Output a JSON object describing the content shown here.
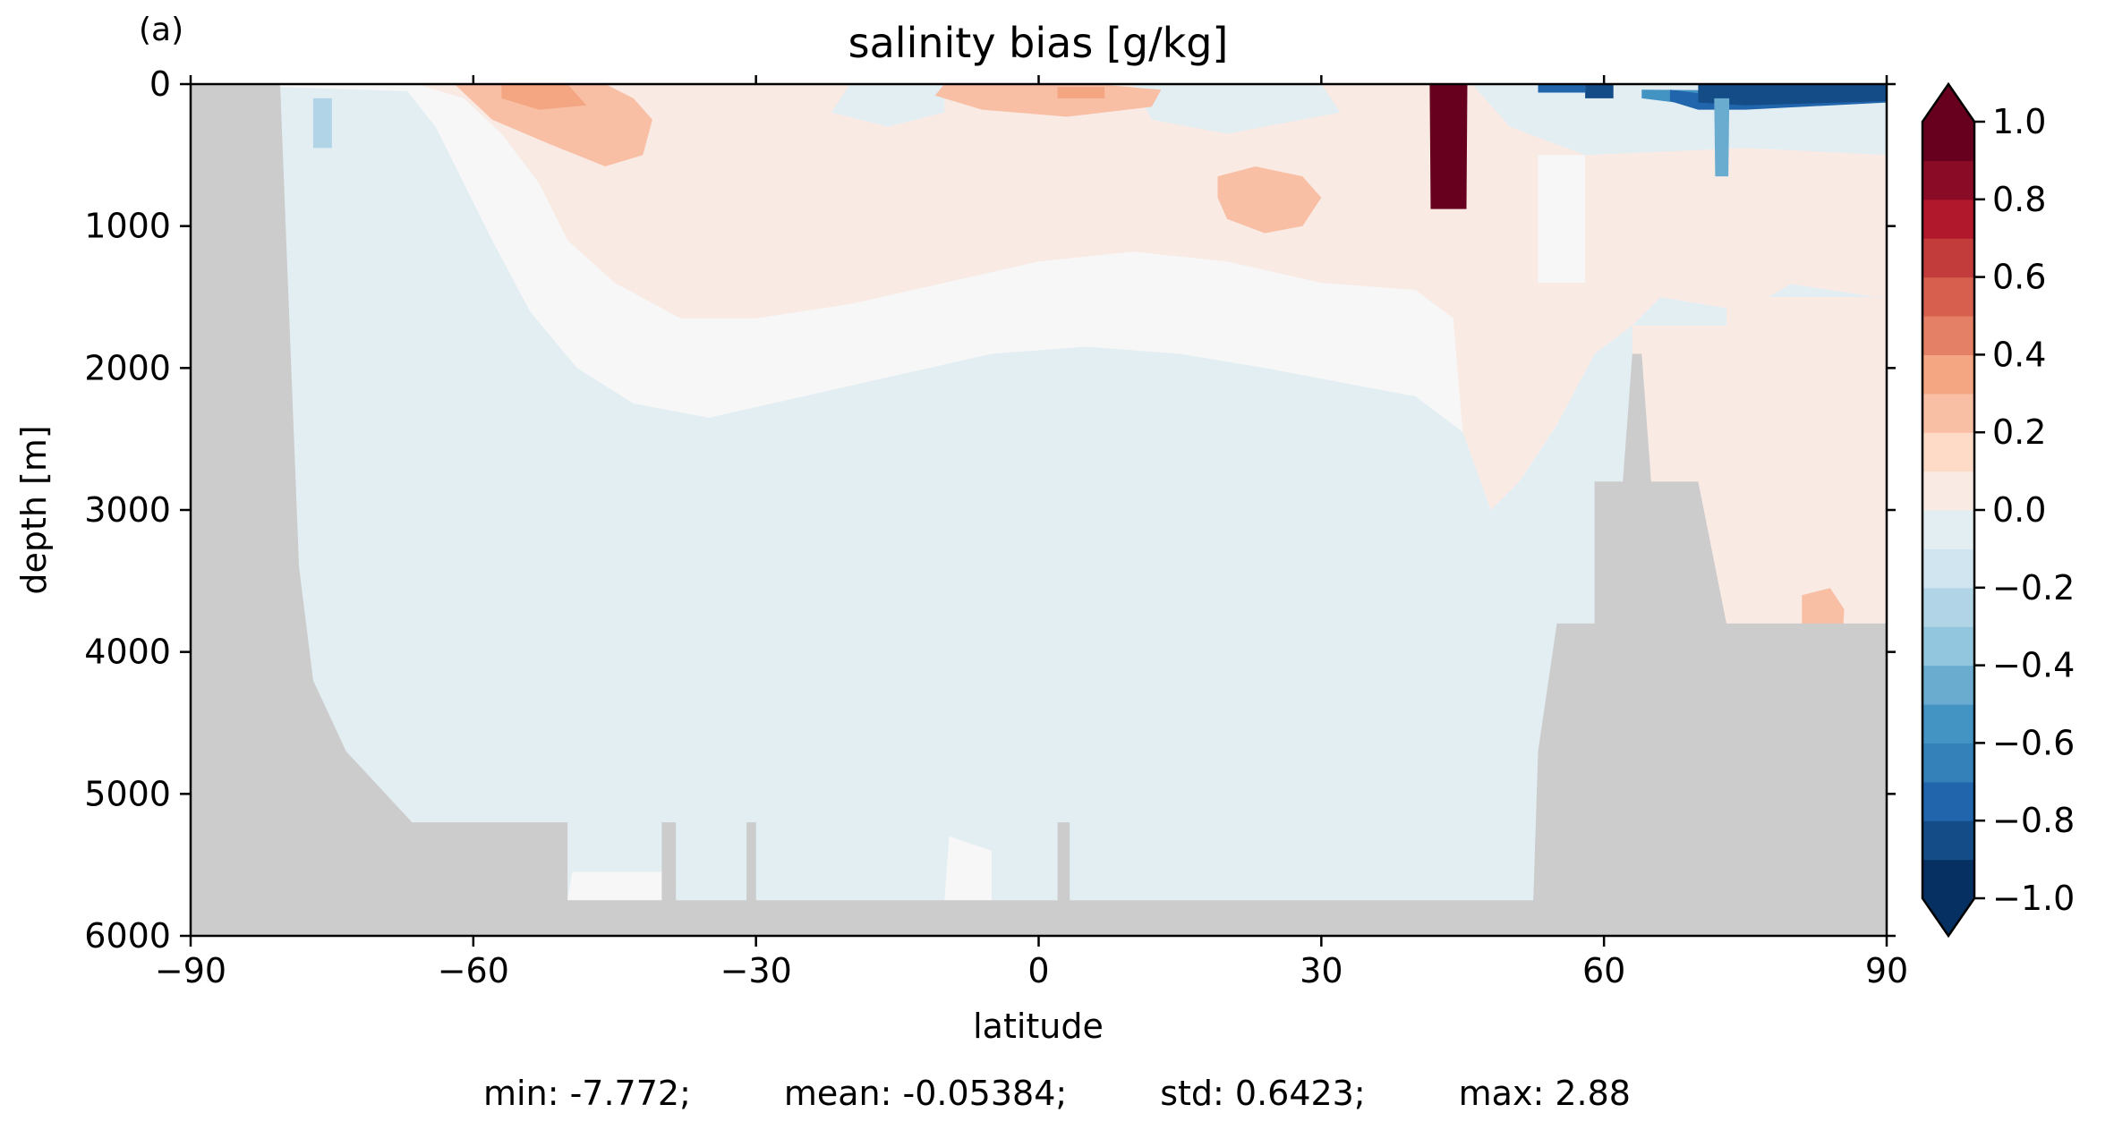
{
  "chart_data": {
    "type": "heatmap",
    "panel_label": "(a)",
    "title": "salinity bias [g/kg]",
    "xlabel": "latitude",
    "ylabel": "depth [m]",
    "xlim": [
      -90,
      90
    ],
    "ylim": [
      6000,
      0
    ],
    "x_ticks": [
      -90,
      -60,
      -30,
      0,
      30,
      60,
      90
    ],
    "x_tick_labels": [
      "−90",
      "−60",
      "−30",
      "0",
      "30",
      "60",
      "90"
    ],
    "y_ticks": [
      0,
      1000,
      2000,
      3000,
      4000,
      5000,
      6000
    ],
    "y_tick_labels": [
      "0",
      "1000",
      "2000",
      "3000",
      "4000",
      "5000",
      "6000"
    ],
    "colorbar": {
      "levels": [
        -1.0,
        -0.9,
        -0.8,
        -0.7,
        -0.6,
        -0.5,
        -0.4,
        -0.3,
        -0.2,
        -0.1,
        0.0,
        0.1,
        0.2,
        0.3,
        0.4,
        0.5,
        0.6,
        0.7,
        0.8,
        0.9,
        1.0
      ],
      "ticks": [
        -1.0,
        -0.8,
        -0.6,
        -0.4,
        -0.2,
        0.0,
        0.2,
        0.4,
        0.6,
        0.8,
        1.0
      ],
      "tick_labels": [
        "−1.0",
        "−0.8",
        "−0.6",
        "−0.4",
        "−0.2",
        "0.0",
        "0.2",
        "0.4",
        "0.6",
        "0.8",
        "1.0"
      ],
      "colors": [
        "#053061",
        "#134c87",
        "#2166ac",
        "#3480b9",
        "#4393c3",
        "#6aacd0",
        "#92c5de",
        "#b1d5e7",
        "#d1e5f0",
        "#e3eef3",
        "#f7f7f7",
        "#f9eae4",
        "#fddbc7",
        "#f8bfa4",
        "#f4a582",
        "#e48066",
        "#d6604d",
        "#c33c3c",
        "#b2182b",
        "#8a0b25",
        "#67001f"
      ],
      "extend": "both"
    },
    "land_color": "#cccccc",
    "land_profile": [
      [
        -90,
        0
      ],
      [
        -80.5,
        0
      ],
      [
        -78.5,
        3400
      ],
      [
        -77,
        4200
      ],
      [
        -73.5,
        4700
      ],
      [
        -66.5,
        5200
      ],
      [
        -50,
        5200
      ],
      [
        -50,
        5750
      ],
      [
        -40,
        5750
      ],
      [
        -40,
        5200
      ],
      [
        -38.5,
        5200
      ],
      [
        -38.5,
        5750
      ],
      [
        -31,
        5750
      ],
      [
        -31,
        5200
      ],
      [
        -30,
        5200
      ],
      [
        -30,
        5750
      ],
      [
        2,
        5750
      ],
      [
        2,
        5200
      ],
      [
        3.3,
        5200
      ],
      [
        3.3,
        5750
      ],
      [
        52.5,
        5750
      ],
      [
        53,
        4700
      ],
      [
        55,
        3800
      ],
      [
        59,
        3800
      ],
      [
        59,
        2800
      ],
      [
        62,
        2800
      ],
      [
        63,
        1900
      ],
      [
        64,
        1900
      ],
      [
        65,
        2800
      ],
      [
        70,
        2800
      ],
      [
        73,
        3800
      ],
      [
        90,
        3800
      ],
      [
        90,
        6000
      ],
      [
        -90,
        6000
      ]
    ],
    "bias_regions": [
      {
        "level": -0.05,
        "points": [
          [
            -80,
            0
          ],
          [
            -50,
            0
          ],
          [
            -30,
            0
          ],
          [
            -10,
            0
          ],
          [
            30,
            0
          ],
          [
            60,
            0
          ],
          [
            90,
            0
          ],
          [
            90,
            6000
          ],
          [
            -90,
            6000
          ],
          [
            -90,
            0
          ]
        ]
      },
      {
        "level": -0.15,
        "points": [
          [
            -80.5,
            0
          ],
          [
            -67,
            0
          ],
          [
            -63,
            400
          ],
          [
            -65,
            1000
          ],
          [
            -67,
            2500
          ],
          [
            -68.5,
            3500
          ],
          [
            -68.5,
            4050
          ],
          [
            -76,
            4400
          ],
          [
            -79,
            4000
          ],
          [
            -79.5,
            2000
          ]
        ]
      },
      {
        "level": -0.15,
        "points": [
          [
            -54,
            5600
          ],
          [
            -52,
            5000
          ],
          [
            -51,
            4750
          ],
          [
            -49.5,
            5100
          ],
          [
            -48,
            5750
          ],
          [
            -54,
            5750
          ]
        ]
      },
      {
        "level": -0.15,
        "points": [
          [
            -38.5,
            5650
          ],
          [
            -30,
            5450
          ],
          [
            -24,
            5700
          ],
          [
            -38.5,
            5750
          ]
        ]
      },
      {
        "level": -0.15,
        "points": [
          [
            -5,
            5600
          ],
          [
            -2,
            5750
          ],
          [
            -6,
            5750
          ]
        ]
      },
      {
        "level": -0.15,
        "points": [
          [
            40,
            1650
          ],
          [
            41,
            1350
          ],
          [
            42,
            1900
          ],
          [
            41.5,
            2250
          ]
        ]
      },
      {
        "level": 0.05,
        "points": [
          [
            -90,
            0
          ],
          [
            90,
            0
          ],
          [
            90,
            1400
          ],
          [
            89,
            1500
          ],
          [
            79,
            1400
          ],
          [
            75,
            1600
          ],
          [
            66,
            1500
          ],
          [
            63,
            1700
          ],
          [
            59,
            1900
          ],
          [
            55,
            2400
          ],
          [
            51,
            2800
          ],
          [
            48,
            3000
          ],
          [
            45,
            2450
          ],
          [
            40,
            2200
          ],
          [
            32,
            2100
          ],
          [
            24,
            2000
          ],
          [
            15,
            1900
          ],
          [
            5,
            1850
          ],
          [
            -5,
            1900
          ],
          [
            -15,
            2050
          ],
          [
            -25,
            2200
          ],
          [
            -35,
            2350
          ],
          [
            -43,
            2250
          ],
          [
            -49,
            2000
          ],
          [
            -54,
            1600
          ],
          [
            -58,
            1100
          ],
          [
            -61,
            700
          ],
          [
            -64,
            300
          ],
          [
            -67,
            50
          ]
        ]
      },
      {
        "level": 0.05,
        "points": [
          [
            -50,
            5750
          ],
          [
            -49.5,
            5550
          ],
          [
            -40,
            5550
          ],
          [
            -40,
            5750
          ]
        ]
      },
      {
        "level": 0.05,
        "points": [
          [
            -10,
            5750
          ],
          [
            -9.5,
            5300
          ],
          [
            -5,
            5400
          ],
          [
            -5,
            5750
          ]
        ]
      },
      {
        "level": 0.15,
        "points": [
          [
            -66,
            0
          ],
          [
            90,
            0
          ],
          [
            90,
            1400
          ],
          [
            89,
            1500
          ],
          [
            79,
            1400
          ],
          [
            75,
            1600
          ],
          [
            66,
            1500
          ],
          [
            63,
            1700
          ],
          [
            59,
            1900
          ],
          [
            55,
            2400
          ],
          [
            51,
            2800
          ],
          [
            48,
            3000
          ],
          [
            45,
            2450
          ],
          [
            44,
            1650
          ],
          [
            40,
            1450
          ],
          [
            30,
            1400
          ],
          [
            20,
            1250
          ],
          [
            10,
            1180
          ],
          [
            0,
            1250
          ],
          [
            -10,
            1400
          ],
          [
            -20,
            1550
          ],
          [
            -30,
            1650
          ],
          [
            -38,
            1650
          ],
          [
            -45,
            1400
          ],
          [
            -50,
            1100
          ],
          [
            -53,
            700
          ],
          [
            -57,
            350
          ],
          [
            -61,
            100
          ]
        ]
      },
      {
        "level": -0.15,
        "points": [
          [
            -20,
            0
          ],
          [
            -10,
            0
          ],
          [
            -10,
            200
          ],
          [
            -16,
            300
          ],
          [
            -22,
            200
          ]
        ]
      },
      {
        "level": -0.15,
        "points": [
          [
            10,
            0
          ],
          [
            30,
            0
          ],
          [
            32,
            200
          ],
          [
            20,
            350
          ],
          [
            12,
            250
          ]
        ]
      },
      {
        "level": -0.15,
        "points": [
          [
            46,
            0
          ],
          [
            90,
            0
          ],
          [
            90,
            500
          ],
          [
            75,
            450
          ],
          [
            58,
            500
          ],
          [
            50,
            300
          ]
        ]
      },
      {
        "level": 0.05,
        "points": [
          [
            53,
            500
          ],
          [
            58,
            500
          ],
          [
            58,
            1400
          ],
          [
            53,
            1400
          ]
        ]
      },
      {
        "level": 0.15,
        "points": [
          [
            63,
            600
          ],
          [
            75,
            700
          ],
          [
            90,
            800
          ],
          [
            90,
            1500
          ],
          [
            80,
            1400
          ],
          [
            75,
            1600
          ],
          [
            66,
            1500
          ],
          [
            63,
            1700
          ]
        ]
      },
      {
        "level": 0.15,
        "points": [
          [
            63,
            1700
          ],
          [
            73,
            1700
          ],
          [
            73,
            3800
          ],
          [
            70,
            3800
          ],
          [
            65,
            2800
          ],
          [
            64,
            1900
          ],
          [
            63,
            1900
          ]
        ]
      },
      {
        "level": 0.15,
        "points": [
          [
            73,
            1500
          ],
          [
            90,
            1500
          ],
          [
            90,
            3800
          ],
          [
            73,
            3800
          ]
        ]
      },
      {
        "level": 0.15,
        "points": [
          [
            63,
            2800
          ],
          [
            70,
            2800
          ],
          [
            73,
            3800
          ],
          [
            65,
            3800
          ]
        ]
      },
      {
        "level": 0.35,
        "points": [
          [
            -62,
            0
          ],
          [
            -46,
            0
          ],
          [
            -43,
            100
          ],
          [
            -41,
            250
          ],
          [
            -42,
            500
          ],
          [
            -46,
            580
          ],
          [
            -52,
            420
          ],
          [
            -58,
            250
          ]
        ]
      },
      {
        "level": 0.35,
        "points": [
          [
            -10,
            0
          ],
          [
            6,
            0
          ],
          [
            13,
            40
          ],
          [
            12,
            160
          ],
          [
            3,
            230
          ],
          [
            -6,
            180
          ],
          [
            -11,
            80
          ]
        ]
      },
      {
        "level": 0.35,
        "points": [
          [
            19,
            650
          ],
          [
            23,
            580
          ],
          [
            28,
            650
          ],
          [
            30,
            800
          ],
          [
            28,
            1000
          ],
          [
            24,
            1050
          ],
          [
            20,
            950
          ],
          [
            19,
            800
          ]
        ]
      },
      {
        "level": 0.45,
        "points": [
          [
            -57,
            0
          ],
          [
            -50,
            0
          ],
          [
            -48,
            150
          ],
          [
            -53,
            180
          ],
          [
            -57,
            100
          ]
        ]
      },
      {
        "level": 0.45,
        "points": [
          [
            2,
            20
          ],
          [
            7,
            20
          ],
          [
            7,
            100
          ],
          [
            2,
            100
          ]
        ]
      },
      {
        "level": 0.35,
        "points": [
          [
            81,
            3600
          ],
          [
            84,
            3550
          ],
          [
            85.5,
            3700
          ],
          [
            85,
            4200
          ],
          [
            81,
            4200
          ]
        ]
      },
      {
        "level": -0.55,
        "points": [
          [
            64,
            40
          ],
          [
            90,
            50
          ],
          [
            90,
            120
          ],
          [
            70,
            150
          ],
          [
            64,
            100
          ]
        ]
      },
      {
        "level": -0.75,
        "points": [
          [
            67,
            40
          ],
          [
            72,
            80
          ],
          [
            90,
            100
          ],
          [
            90,
            130
          ],
          [
            75,
            180
          ],
          [
            70,
            180
          ],
          [
            67,
            120
          ]
        ]
      },
      {
        "level": -0.95,
        "points": [
          [
            70,
            0
          ],
          [
            90,
            0
          ],
          [
            90,
            120
          ],
          [
            75,
            150
          ],
          [
            70,
            130
          ]
        ]
      },
      {
        "level": -0.95,
        "points": [
          [
            58,
            0
          ],
          [
            61,
            0
          ],
          [
            61,
            100
          ],
          [
            58,
            100
          ]
        ]
      },
      {
        "level": -0.75,
        "points": [
          [
            53,
            0
          ],
          [
            58,
            0
          ],
          [
            58,
            60
          ],
          [
            53,
            60
          ]
        ]
      },
      {
        "level": -0.45,
        "points": [
          [
            71.7,
            100
          ],
          [
            73.3,
            100
          ],
          [
            73.2,
            650
          ],
          [
            71.8,
            650
          ]
        ]
      },
      {
        "level": -0.35,
        "points": [
          [
            -77,
            100
          ],
          [
            -75,
            100
          ],
          [
            -75,
            450
          ],
          [
            -77,
            450
          ]
        ]
      },
      {
        "level": 1.0,
        "points": [
          [
            41.5,
            0
          ],
          [
            45.5,
            0
          ],
          [
            45.4,
            880
          ],
          [
            41.6,
            880
          ]
        ]
      }
    ]
  },
  "stats": {
    "min": "min: -7.772;",
    "mean": "mean: -0.05384;",
    "std": "std: 0.6423;",
    "max": "max: 2.88"
  }
}
